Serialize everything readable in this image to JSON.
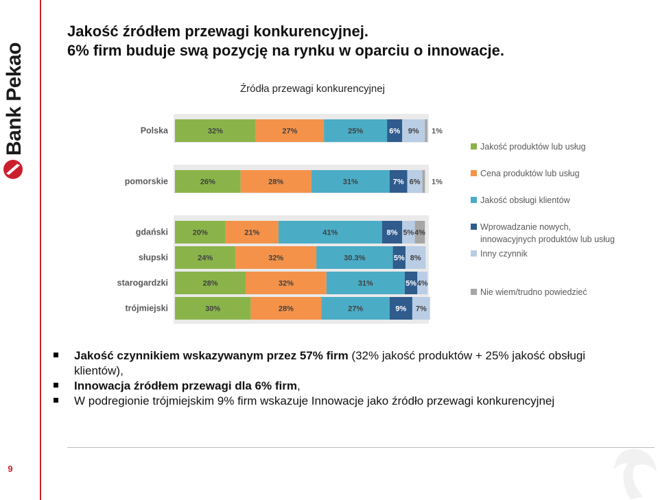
{
  "logo": {
    "text": "Bank Pekao"
  },
  "page_number": "9",
  "title": {
    "line1": "Jakość źródłem przewagi konkurencyjnej.",
    "line2": "6% firm buduje swą pozycję na rynku w oparciu o innowacje."
  },
  "chart_data": {
    "type": "bar",
    "orientation": "horizontal",
    "stacked": true,
    "percent": true,
    "title": "Źródła przewagi konkurencyjnej",
    "legend_position": "right",
    "categories": [
      "Polska",
      "pomorskie",
      "gdański",
      "słupski",
      "starogardzki",
      "trójmiejski"
    ],
    "series": [
      {
        "name": "Jakość produktów lub usług",
        "color": "#8ab44a",
        "values": [
          32,
          26,
          20,
          24,
          28,
          30
        ],
        "labels": [
          "32%",
          "26%",
          "20%",
          "24%",
          "28%",
          "30%"
        ]
      },
      {
        "name": "Cena produktów lub usług",
        "color": "#f4924a",
        "values": [
          27,
          28,
          21,
          32,
          32,
          28
        ],
        "labels": [
          "27%",
          "28%",
          "21%",
          "32%",
          "32%",
          "28%"
        ]
      },
      {
        "name": "Jakość obsługi klientów",
        "color": "#4bacc6",
        "values": [
          25,
          31,
          41,
          30.3,
          31,
          27
        ],
        "labels": [
          "25%",
          "31%",
          "41%",
          "30.3%",
          "31%",
          "27%"
        ]
      },
      {
        "name": "Wprowadzanie nowych, innowacyjnych produktów lub usług",
        "color": "#2f5b8d",
        "values": [
          6,
          7,
          8,
          5,
          5,
          9
        ],
        "labels": [
          "6%",
          "7%",
          "8%",
          "5%",
          "5%",
          "9%"
        ]
      },
      {
        "name": "Inny czynnik",
        "color": "#b9cde5",
        "values": [
          9,
          6,
          5,
          8,
          4,
          7
        ],
        "labels": [
          "9%",
          "6%",
          "5%",
          "8%",
          "4%",
          "7%"
        ]
      },
      {
        "name": "Nie wiem/trudno powiedzieć",
        "color": "#a6a6a6",
        "values": [
          1,
          1,
          4,
          0,
          0,
          0
        ],
        "labels": [
          "1%",
          "1%",
          "4%",
          "",
          "",
          ""
        ]
      }
    ]
  },
  "bullets": [
    {
      "bold": "Jakość czynnikiem wskazywanym przez 57% firm",
      "rest": " (32% jakość produktów + 25% jakość obsługi klientów),"
    },
    {
      "bold": "Innowacja źródłem przewagi dla 6% firm",
      "rest": ","
    },
    {
      "bold": "",
      "rest": "W podregionie trójmiejskim 9% firm wskazuje Innowacje jako źródło przewagi konkurencyjnej"
    }
  ]
}
